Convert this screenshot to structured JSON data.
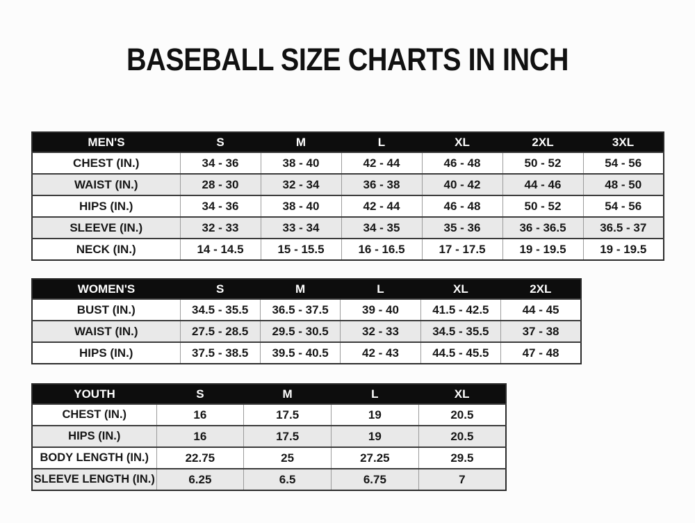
{
  "title": "BASEBALL SIZE CHARTS IN INCH",
  "colors": {
    "page_background": "#fcfcfc",
    "header_bg": "#0d0d0d",
    "header_text": "#ffffff",
    "row_white": "#ffffff",
    "row_alt": "#e9e9e9",
    "border_dark": "#2b2b2b",
    "divider_gray": "#9b9b9b",
    "text": "#161616"
  },
  "chart_data": [
    {
      "type": "table",
      "id": "mens",
      "title": "MEN'S",
      "columns": [
        "MEN'S",
        "S",
        "M",
        "L",
        "XL",
        "2XL",
        "3XL"
      ],
      "rows": [
        [
          "CHEST (IN.)",
          "34 - 36",
          "38 - 40",
          "42 - 44",
          "46 - 48",
          "50 - 52",
          "54 - 56"
        ],
        [
          "WAIST (IN.)",
          "28 - 30",
          "32 - 34",
          "36 - 38",
          "40 - 42",
          "44 - 46",
          "48 - 50"
        ],
        [
          "HIPS (IN.)",
          "34 - 36",
          "38 - 40",
          "42 - 44",
          "46 - 48",
          "50 - 52",
          "54 - 56"
        ],
        [
          "SLEEVE (IN.)",
          "32 - 33",
          "33 - 34",
          "34 - 35",
          "35 - 36",
          "36 - 36.5",
          "36.5 - 37"
        ],
        [
          "NECK (IN.)",
          "14 - 14.5",
          "15 - 15.5",
          "16 - 16.5",
          "17 - 17.5",
          "19 - 19.5",
          "19 - 19.5"
        ]
      ]
    },
    {
      "type": "table",
      "id": "womens",
      "title": "WOMEN'S",
      "columns": [
        "WOMEN'S",
        "S",
        "M",
        "L",
        "XL",
        "2XL"
      ],
      "rows": [
        [
          "BUST (IN.)",
          "34.5 - 35.5",
          "36.5 - 37.5",
          "39 - 40",
          "41.5 - 42.5",
          "44 - 45"
        ],
        [
          "WAIST (IN.)",
          "27.5 - 28.5",
          "29.5 - 30.5",
          "32 - 33",
          "34.5 - 35.5",
          "37 - 38"
        ],
        [
          "HIPS (IN.)",
          "37.5 - 38.5",
          "39.5 - 40.5",
          "42 - 43",
          "44.5 - 45.5",
          "47 - 48"
        ]
      ]
    },
    {
      "type": "table",
      "id": "youth",
      "title": "YOUTH",
      "columns": [
        "YOUTH",
        "S",
        "M",
        "L",
        "XL"
      ],
      "rows": [
        [
          "CHEST (IN.)",
          "16",
          "17.5",
          "19",
          "20.5"
        ],
        [
          "HIPS (IN.)",
          "16",
          "17.5",
          "19",
          "20.5"
        ],
        [
          "BODY LENGTH (IN.)",
          "22.75",
          "25",
          "27.25",
          "29.5"
        ],
        [
          "SLEEVE LENGTH (IN.)",
          "6.25",
          "6.5",
          "6.75",
          "7"
        ]
      ]
    }
  ]
}
